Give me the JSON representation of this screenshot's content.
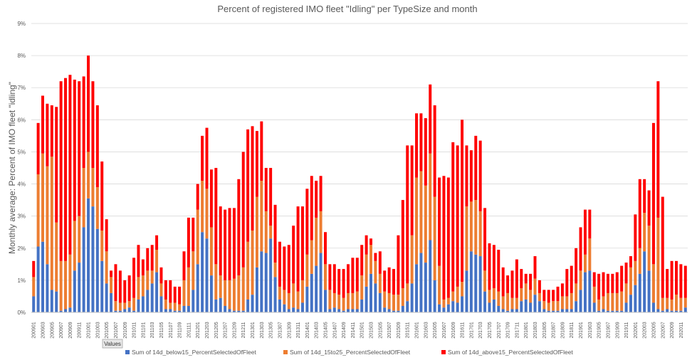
{
  "chart_data": {
    "type": "bar",
    "stacked": true,
    "title": "Percent of registered IMO fleet \"Idling\" per TypeSize and month",
    "xlabel": "",
    "ylabel": "Monthly average: Percent of IMO fleet \"idling\"",
    "ylim": [
      0,
      9
    ],
    "yticks": [
      "0%",
      "1%",
      "2%",
      "3%",
      "4%",
      "5%",
      "6%",
      "7%",
      "8%",
      "9%"
    ],
    "grid": true,
    "legend_position": "bottom",
    "field_button": "Values",
    "categories": [
      "200901",
      "200902",
      "200903",
      "200904",
      "200905",
      "200906",
      "200907",
      "200908",
      "200909",
      "200910",
      "200911",
      "200912",
      "201001",
      "201002",
      "201003",
      "201004",
      "201005",
      "201006",
      "201007",
      "201008",
      "201009",
      "201010",
      "201011",
      "201012",
      "201101",
      "201102",
      "201103",
      "201104",
      "201105",
      "201106",
      "201107",
      "201108",
      "201109",
      "201110",
      "201111",
      "201112",
      "201201",
      "201202",
      "201203",
      "201204",
      "201205",
      "201206",
      "201207",
      "201208",
      "201209",
      "201210",
      "201211",
      "201212",
      "201301",
      "201302",
      "201303",
      "201304",
      "201305",
      "201306",
      "201307",
      "201308",
      "201309",
      "201310",
      "201311",
      "201312",
      "201401",
      "201402",
      "201403",
      "201404",
      "201405",
      "201406",
      "201407",
      "201408",
      "201409",
      "201410",
      "201411",
      "201412",
      "201501",
      "201502",
      "201503",
      "201504",
      "201505",
      "201506",
      "201507",
      "201508",
      "201509",
      "201510",
      "201511",
      "201512",
      "201601",
      "201602",
      "201603",
      "201604",
      "201605",
      "201606",
      "201607",
      "201608",
      "201609",
      "201610",
      "201611",
      "201612",
      "201701",
      "201702",
      "201703",
      "201704",
      "201705",
      "201706",
      "201707",
      "201708",
      "201709",
      "201710",
      "201711",
      "201712",
      "201801",
      "201802",
      "201803",
      "201804",
      "201805",
      "201806",
      "201807",
      "201808",
      "201809",
      "201810",
      "201811",
      "201812",
      "201901",
      "201902",
      "201903",
      "201904",
      "201905",
      "201906",
      "201907",
      "201908",
      "201909",
      "201910",
      "201911",
      "201912",
      "202001",
      "202002",
      "202003",
      "202004",
      "202005",
      "202006",
      "202007",
      "202008",
      "202009",
      "202010",
      "202011",
      "202012"
    ],
    "xtick_labels": [
      "200901",
      "200903",
      "200905",
      "200907",
      "200909",
      "200911",
      "201001",
      "201003",
      "201005",
      "201007",
      "201009",
      "201011",
      "201101",
      "201103",
      "201105",
      "201107",
      "201109",
      "201111",
      "201201",
      "201203",
      "201205",
      "201207",
      "201209",
      "201211",
      "201301",
      "201303",
      "201305",
      "201307",
      "201309",
      "201311",
      "201401",
      "201403",
      "201405",
      "201407",
      "201409",
      "201411",
      "201501",
      "201503",
      "201505",
      "201507",
      "201509",
      "201511",
      "201601",
      "201603",
      "201605",
      "201607",
      "201609",
      "201611",
      "201701",
      "201703",
      "201705",
      "201707",
      "201709",
      "201711",
      "201801",
      "201803",
      "201805",
      "201807",
      "201809",
      "201811",
      "201901",
      "201903",
      "201905",
      "201907",
      "201909",
      "201911",
      "202001",
      "202003",
      "202005",
      "202007",
      "202009",
      "202011"
    ],
    "series": [
      {
        "name": "Sum of 14d_below15_PercentSelectedOfFleet",
        "color": "#4472C4",
        "values": [
          0.5,
          2.05,
          2.2,
          1.5,
          0.7,
          0.65,
          0.05,
          0.1,
          0.15,
          1.3,
          1.55,
          2.65,
          3.55,
          3.3,
          2.6,
          1.6,
          0.9,
          0.6,
          0.05,
          0.05,
          0.1,
          0.15,
          0.05,
          0.4,
          0.5,
          0.7,
          0.9,
          1.25,
          0.5,
          0.1,
          0.1,
          0.05,
          0.05,
          0.2,
          0.2,
          0.7,
          1.5,
          2.5,
          2.3,
          1.15,
          0.4,
          0.45,
          0.2,
          0.1,
          0.05,
          0.05,
          0.05,
          0.4,
          0.55,
          1.4,
          1.9,
          1.85,
          2.3,
          1.1,
          0.4,
          0.25,
          0.1,
          0.15,
          0.1,
          0.3,
          0.8,
          1.2,
          1.45,
          1.85,
          0.7,
          0.1,
          0.15,
          0.1,
          0.05,
          0.1,
          0.1,
          0.1,
          0.4,
          0.8,
          1.2,
          0.9,
          0.6,
          0.15,
          0.1,
          0.05,
          0.05,
          0.2,
          0.35,
          0.9,
          1.5,
          1.85,
          1.55,
          2.25,
          1.0,
          0.25,
          0.15,
          0.25,
          0.35,
          0.3,
          0.5,
          1.3,
          1.9,
          1.8,
          1.75,
          0.65,
          0.3,
          0.4,
          0.2,
          0.1,
          0.05,
          0.1,
          0.1,
          0.35,
          0.4,
          0.3,
          0.55,
          0.35,
          0.1,
          0.05,
          0.05,
          0.05,
          0.1,
          0.1,
          0.1,
          0.35,
          0.7,
          1.25,
          1.3,
          0.3,
          0.05,
          0.1,
          0.05,
          0.05,
          0.05,
          0.05,
          0.3,
          0.55,
          0.85,
          1.2,
          1.9,
          1.3,
          0.3,
          0.1,
          0.05,
          0.1,
          0.05,
          0.05,
          0.05,
          0.15
        ]
      },
      {
        "name": "Sum of 14d_15to25_PercentSelectedOfFleet",
        "color": "#ED7D31",
        "values": [
          0.6,
          2.25,
          2.75,
          3.05,
          4.15,
          2.15,
          1.55,
          1.5,
          1.65,
          1.55,
          1.45,
          1.85,
          1.45,
          1.2,
          1.3,
          0.95,
          1.0,
          0.5,
          0.3,
          0.25,
          0.2,
          0.2,
          0.4,
          0.7,
          0.65,
          0.6,
          0.4,
          0.7,
          0.4,
          0.3,
          0.2,
          0.25,
          0.2,
          0.8,
          1.2,
          1.2,
          1.7,
          1.6,
          1.55,
          1.5,
          1.1,
          0.7,
          0.8,
          0.9,
          1.0,
          1.1,
          1.35,
          1.8,
          2.0,
          2.2,
          2.2,
          1.3,
          0.4,
          0.45,
          0.4,
          0.45,
          0.5,
          0.75,
          0.55,
          0.7,
          1.0,
          1.05,
          1.5,
          1.3,
          0.8,
          0.6,
          0.45,
          0.45,
          0.4,
          0.5,
          0.5,
          0.55,
          0.75,
          1.0,
          0.9,
          0.7,
          0.6,
          0.5,
          0.5,
          0.5,
          0.5,
          0.55,
          0.55,
          1.5,
          2.7,
          2.55,
          2.4,
          2.7,
          2.6,
          1.2,
          0.25,
          0.2,
          0.3,
          0.5,
          0.45,
          2.0,
          1.55,
          1.7,
          1.4,
          0.65,
          0.4,
          0.35,
          0.45,
          0.4,
          0.55,
          0.35,
          0.35,
          0.4,
          0.5,
          0.4,
          0.5,
          0.25,
          0.25,
          0.25,
          0.3,
          0.3,
          0.4,
          0.4,
          0.5,
          0.55,
          0.6,
          0.55,
          1.0,
          0.5,
          0.35,
          0.4,
          0.55,
          0.55,
          0.55,
          0.6,
          0.6,
          0.85,
          0.75,
          0.8,
          1.2,
          1.4,
          1.2,
          2.85,
          0.4,
          0.35,
          0.35,
          0.5,
          0.4,
          0.3
        ]
      },
      {
        "name": "Sum of 14d_above15_PercentSelectedOfFleet",
        "color": "#FF0000",
        "values": [
          0.5,
          1.6,
          1.8,
          1.95,
          1.6,
          3.6,
          5.6,
          5.7,
          5.6,
          4.4,
          4.2,
          2.85,
          3.0,
          2.7,
          2.55,
          2.15,
          1.0,
          0.2,
          1.15,
          1.0,
          0.7,
          0.8,
          1.25,
          1.0,
          0.5,
          0.7,
          0.8,
          0.45,
          0.5,
          0.6,
          0.7,
          0.5,
          0.55,
          0.9,
          1.55,
          1.05,
          0.8,
          1.4,
          1.9,
          1.8,
          3.0,
          2.15,
          2.2,
          2.25,
          2.2,
          3.0,
          3.6,
          3.5,
          3.25,
          2.05,
          1.85,
          1.35,
          1.8,
          1.8,
          1.4,
          1.35,
          1.5,
          1.8,
          2.65,
          2.3,
          2.05,
          2.0,
          1.15,
          1.1,
          1.0,
          0.8,
          0.9,
          0.8,
          0.9,
          0.9,
          1.1,
          1.05,
          0.95,
          0.6,
          0.2,
          0.25,
          0.7,
          0.65,
          0.8,
          0.8,
          1.85,
          2.75,
          4.3,
          2.8,
          2.0,
          1.8,
          2.1,
          2.15,
          2.85,
          2.75,
          3.85,
          3.75,
          4.65,
          4.4,
          5.05,
          1.9,
          1.6,
          2.0,
          2.2,
          1.95,
          1.45,
          1.35,
          1.3,
          0.9,
          0.55,
          0.85,
          1.2,
          0.6,
          0.3,
          0.5,
          0.7,
          0.4,
          0.35,
          0.4,
          0.35,
          0.45,
          0.4,
          0.85,
          0.85,
          1.1,
          1.35,
          1.4,
          0.9,
          0.45,
          0.8,
          0.75,
          0.6,
          0.6,
          0.65,
          0.8,
          0.65,
          0.35,
          1.45,
          2.15,
          1.05,
          1.1,
          4.4,
          4.25,
          3.15,
          0.9,
          1.2,
          1.05,
          1.05,
          1.0
        ]
      }
    ]
  }
}
